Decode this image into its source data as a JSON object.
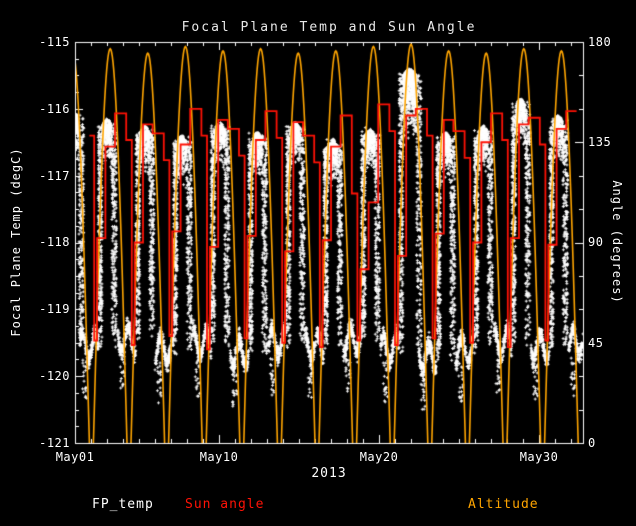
{
  "title": "Focal Plane Temp and Sun Angle",
  "axes": {
    "left_label": "Focal Plane Temp (degC)",
    "right_label": "Angle (degrees)",
    "x_sub_label": "2013",
    "left_ticks": [
      "-115",
      "-116",
      "-117",
      "-118",
      "-119",
      "-120",
      "-121"
    ],
    "right_ticks": [
      "180",
      "135",
      "90",
      "45",
      "0"
    ],
    "x_ticks": [
      "May01",
      "May10",
      "May20",
      "May30"
    ]
  },
  "legend": {
    "fp_temp": "FP_temp",
    "sun_angle": "Sun angle",
    "altitude": "Altitude"
  },
  "colors": {
    "background": "#000000",
    "axis": "#ffffff",
    "fp_temp": "#ffffff",
    "sun_angle": "#ff1206",
    "altitude": "#ffa500"
  },
  "chart_data": {
    "type": "scatter",
    "title": "Focal Plane Temp and Sun Angle",
    "x_domain_days": [
      0,
      31.75
    ],
    "x_tick_days": [
      0,
      9,
      19,
      29
    ],
    "x_tick_labels": [
      "May01",
      "May10",
      "May20",
      "May30"
    ],
    "x_year": "2013",
    "y_left": {
      "label": "Focal Plane Temp (degC)",
      "range": [
        -121,
        -115
      ],
      "ticks": [
        -115,
        -116,
        -117,
        -118,
        -119,
        -120,
        -121
      ]
    },
    "y_right": {
      "label": "Angle (degrees)",
      "range": [
        0,
        180
      ],
      "ticks": [
        180,
        135,
        90,
        45,
        0
      ]
    },
    "seed": 1337,
    "series": [
      {
        "name": "FP_temp",
        "type": "scatter",
        "color": "#ffffff",
        "cycles": [
          {
            "t0": -1.75,
            "trough": -119.5,
            "peak": -116.15
          },
          {
            "t0": 0.3,
            "trough": -119.55,
            "peak": -116.25
          },
          {
            "t0": 2.65,
            "trough": -119.45,
            "peak": -116.35
          },
          {
            "t0": 5.0,
            "trough": -119.6,
            "peak": -116.5
          },
          {
            "t0": 7.35,
            "trough": -119.5,
            "peak": -116.3
          },
          {
            "t0": 9.7,
            "trough": -119.65,
            "peak": -116.45
          },
          {
            "t0": 12.05,
            "trough": -119.5,
            "peak": -116.3
          },
          {
            "t0": 14.4,
            "trough": -119.55,
            "peak": -116.55
          },
          {
            "t0": 16.75,
            "trough": -119.45,
            "peak": -116.4
          },
          {
            "t0": 19.1,
            "trough": -119.6,
            "peak": -115.5,
            "big": true
          },
          {
            "t0": 21.45,
            "trough": -119.7,
            "peak": -116.45
          },
          {
            "t0": 23.8,
            "trough": -119.6,
            "peak": -116.35
          },
          {
            "t0": 26.15,
            "trough": -119.5,
            "peak": -115.95
          },
          {
            "t0": 28.5,
            "trough": -119.55,
            "peak": -116.2
          },
          {
            "t0": 30.85,
            "trough": -119.5,
            "peak": -116.1
          }
        ]
      },
      {
        "name": "Sun angle",
        "type": "step",
        "color": "#ff1206",
        "steps": [
          [
            0.9,
            138
          ],
          [
            1.2,
            46
          ],
          [
            1.38,
            92
          ],
          [
            1.9,
            133
          ],
          [
            2.5,
            148
          ],
          [
            3.2,
            136
          ],
          [
            3.55,
            44
          ],
          [
            3.73,
            90
          ],
          [
            4.25,
            143
          ],
          [
            4.85,
            139
          ],
          [
            5.55,
            127
          ],
          [
            5.9,
            48
          ],
          [
            6.08,
            95
          ],
          [
            6.6,
            134
          ],
          [
            7.2,
            150
          ],
          [
            7.9,
            138
          ],
          [
            8.25,
            42
          ],
          [
            8.43,
            88
          ],
          [
            8.95,
            145
          ],
          [
            9.55,
            141
          ],
          [
            10.25,
            129
          ],
          [
            10.6,
            47
          ],
          [
            10.78,
            93
          ],
          [
            11.3,
            136
          ],
          [
            11.9,
            149
          ],
          [
            12.6,
            137
          ],
          [
            12.95,
            45
          ],
          [
            13.13,
            86
          ],
          [
            13.65,
            144
          ],
          [
            14.25,
            138
          ],
          [
            14.95,
            126
          ],
          [
            15.3,
            43
          ],
          [
            15.48,
            91
          ],
          [
            16.0,
            133
          ],
          [
            16.6,
            147
          ],
          [
            17.3,
            112
          ],
          [
            17.65,
            46
          ],
          [
            17.83,
            78
          ],
          [
            18.35,
            108
          ],
          [
            18.95,
            152
          ],
          [
            19.65,
            140
          ],
          [
            20.0,
            44
          ],
          [
            20.18,
            84
          ],
          [
            20.7,
            147
          ],
          [
            21.3,
            150
          ],
          [
            22.0,
            138
          ],
          [
            22.35,
            47
          ],
          [
            22.53,
            94
          ],
          [
            23.05,
            145
          ],
          [
            23.65,
            140
          ],
          [
            24.35,
            128
          ],
          [
            24.7,
            45
          ],
          [
            24.88,
            90
          ],
          [
            25.4,
            135
          ],
          [
            26.0,
            148
          ],
          [
            26.7,
            136
          ],
          [
            27.05,
            43
          ],
          [
            27.23,
            92
          ],
          [
            27.75,
            143
          ],
          [
            28.35,
            146
          ],
          [
            29.05,
            134
          ],
          [
            29.4,
            46
          ],
          [
            29.58,
            89
          ],
          [
            30.1,
            141
          ],
          [
            30.7,
            149
          ],
          [
            31.35,
            149
          ]
        ]
      },
      {
        "name": "Altitude",
        "type": "arc",
        "color": "#ffa500",
        "arcs": [
          {
            "center": -0.15,
            "half_width": 1.05,
            "peak": 176
          },
          {
            "center": 2.2,
            "half_width": 1.05,
            "peak": 177
          },
          {
            "center": 4.55,
            "half_width": 1.05,
            "peak": 175
          },
          {
            "center": 6.9,
            "half_width": 1.05,
            "peak": 178
          },
          {
            "center": 9.25,
            "half_width": 1.05,
            "peak": 176
          },
          {
            "center": 11.6,
            "half_width": 1.05,
            "peak": 177
          },
          {
            "center": 13.95,
            "half_width": 1.05,
            "peak": 175
          },
          {
            "center": 16.3,
            "half_width": 1.05,
            "peak": 176
          },
          {
            "center": 18.65,
            "half_width": 1.05,
            "peak": 178
          },
          {
            "center": 21.0,
            "half_width": 1.05,
            "peak": 179
          },
          {
            "center": 23.35,
            "half_width": 1.05,
            "peak": 176
          },
          {
            "center": 25.7,
            "half_width": 1.05,
            "peak": 175
          },
          {
            "center": 28.05,
            "half_width": 1.05,
            "peak": 177
          },
          {
            "center": 30.4,
            "half_width": 1.05,
            "peak": 176
          }
        ]
      }
    ]
  }
}
